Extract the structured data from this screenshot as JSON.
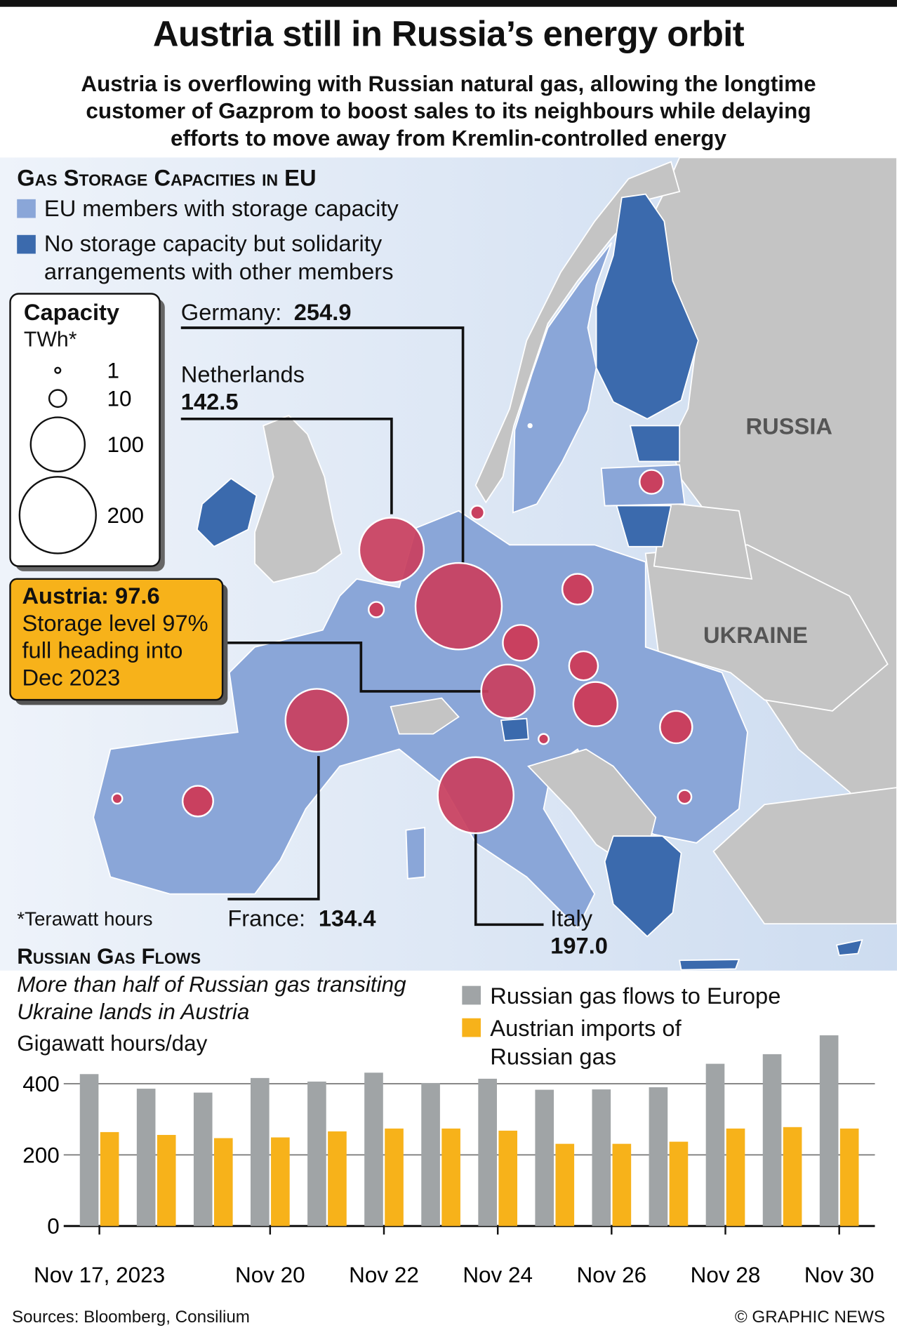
{
  "header": {
    "title": "Austria still in Russia’s energy orbit",
    "subtitle": "Austria is overflowing with Russian natural gas, allowing the longtime customer of Gazprom to boost sales to its neighbours while delaying efforts to move away from Kremlin-controlled energy"
  },
  "map": {
    "section_title": "Gas Storage Capacities in EU",
    "legend": [
      {
        "label": "EU members with storage capacity",
        "color": "#8aa6d8"
      },
      {
        "label": "No storage capacity but solidarity arrangements with other members",
        "color": "#3b6aad"
      }
    ],
    "capacity_legend": {
      "title": "Capacity",
      "unit": "TWh*",
      "sizes": [
        1,
        10,
        100,
        200
      ]
    },
    "callouts": [
      {
        "name": "Germany:",
        "value": 254.9
      },
      {
        "name": "Netherlands",
        "value": 142.5
      },
      {
        "name": "France:",
        "value": 134.4
      },
      {
        "name": "Italy",
        "value": 197.0,
        "value_label": "197.0"
      },
      {
        "name": "Austria:",
        "value": 97.6
      }
    ],
    "austria_note": "Storage level 97% full heading into Dec 2023",
    "labels": [
      "RUSSIA",
      "UKRAINE"
    ],
    "footnote": "*Terawatt hours"
  },
  "chart_data": {
    "type": "bar",
    "title": "Russian Gas Flows",
    "subtitle": "More than half of Russian gas transiting Ukraine lands in Austria",
    "y_label": "Gigawatt hours/day",
    "categories": [
      "Nov 17, 2023",
      null,
      null,
      "Nov 20",
      null,
      "Nov 22",
      null,
      "Nov 24",
      null,
      "Nov 26",
      null,
      "Nov 28",
      null,
      "Nov 30"
    ],
    "series": [
      {
        "name": "Russian gas flows to Europe",
        "color": "#a0a4a6",
        "values": [
          427,
          386,
          375,
          416,
          406,
          431,
          402,
          414,
          383,
          384,
          390,
          456,
          483,
          536
        ]
      },
      {
        "name": "Austrian imports of Russian gas",
        "color": "#f7b21a",
        "values": [
          264,
          256,
          247,
          249,
          266,
          274,
          274,
          268,
          231,
          231,
          237,
          274,
          278,
          274
        ]
      }
    ],
    "ylim": [
      0,
      560
    ],
    "yticks": [
      0,
      200,
      400
    ],
    "grid": true
  },
  "footer": {
    "source": "Sources: Bloomberg, Consilium",
    "credit": "© GRAPHIC NEWS"
  }
}
